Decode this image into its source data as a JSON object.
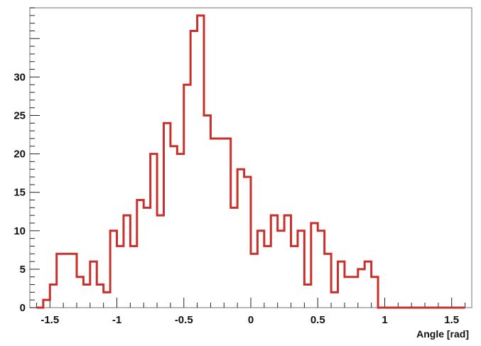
{
  "chart_data": {
    "type": "histogram",
    "title": "",
    "xlabel": "Angle [rad]",
    "ylabel": "",
    "xlim": [
      -1.65,
      1.65
    ],
    "ylim": [
      0,
      39
    ],
    "grid": false,
    "legend": "none",
    "line_color": "#c8302c",
    "frame_color": "#888888",
    "x_ticks": [
      {
        "value": -1.5,
        "label": "-1.5"
      },
      {
        "value": -1.0,
        "label": "-1"
      },
      {
        "value": -0.5,
        "label": "-0.5"
      },
      {
        "value": 0.0,
        "label": "0"
      },
      {
        "value": 0.5,
        "label": "0.5"
      },
      {
        "value": 1.0,
        "label": "1"
      },
      {
        "value": 1.5,
        "label": "1.5"
      }
    ],
    "y_ticks": [
      {
        "value": 0,
        "label": "0"
      },
      {
        "value": 5,
        "label": "5"
      },
      {
        "value": 10,
        "label": "10"
      },
      {
        "value": 15,
        "label": "15"
      },
      {
        "value": 20,
        "label": "20"
      },
      {
        "value": 25,
        "label": "25"
      },
      {
        "value": 30,
        "label": "30"
      }
    ],
    "bin_edges": [
      -1.6,
      -1.55,
      -1.5,
      -1.45,
      -1.4,
      -1.35,
      -1.3,
      -1.25,
      -1.2,
      -1.15,
      -1.1,
      -1.05,
      -1.0,
      -0.95,
      -0.9,
      -0.85,
      -0.8,
      -0.75,
      -0.7,
      -0.65,
      -0.6,
      -0.55,
      -0.5,
      -0.45,
      -0.4,
      -0.35,
      -0.3,
      -0.25,
      -0.2,
      -0.15,
      -0.1,
      -0.05,
      0.0,
      0.05,
      0.1,
      0.15,
      0.2,
      0.25,
      0.3,
      0.35,
      0.4,
      0.45,
      0.5,
      0.55,
      0.6,
      0.65,
      0.7,
      0.75,
      0.8,
      0.85,
      0.9,
      0.95,
      1.0,
      1.05,
      1.1,
      1.15,
      1.2,
      1.25,
      1.3,
      1.35,
      1.4,
      1.45,
      1.5,
      1.55,
      1.6
    ],
    "values": [
      0,
      1,
      3,
      7,
      7,
      7,
      4,
      3,
      6,
      3,
      2,
      10,
      8,
      12,
      8,
      14,
      13,
      20,
      12,
      24,
      21,
      20,
      29,
      36,
      38,
      25,
      22,
      22,
      22,
      13,
      18,
      17,
      7,
      10,
      8,
      12,
      10,
      12,
      8,
      10,
      3,
      11,
      10,
      7,
      2,
      6,
      4,
      4,
      5,
      6,
      4,
      0,
      0,
      0,
      0,
      0,
      0,
      0,
      0,
      0,
      0,
      0,
      0,
      0
    ]
  }
}
